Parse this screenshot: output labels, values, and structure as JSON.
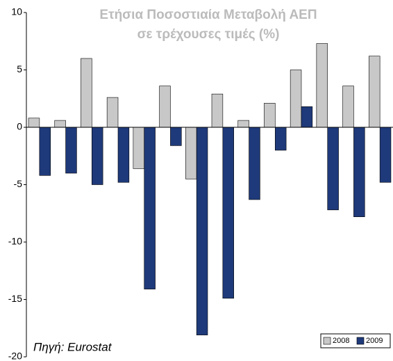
{
  "chart_data": {
    "type": "bar",
    "title": "Ετήσια Ποσοστιαία Μεταβολή ΑΕΠ",
    "subtitle": "σε τρέχουσες τιμές (%)",
    "source": "Πηγή: Eurostat",
    "categories": [
      null,
      null,
      null,
      null,
      null,
      null,
      null,
      null,
      null,
      null,
      null,
      null,
      null,
      null
    ],
    "series": [
      {
        "name": "2008",
        "color": "#c8c8c8",
        "values": [
          0.8,
          0.6,
          6.0,
          2.6,
          -3.6,
          3.6,
          -4.5,
          2.9,
          0.6,
          2.1,
          5.0,
          7.3,
          3.6,
          6.2
        ]
      },
      {
        "name": "2009",
        "color": "#1f3a7a",
        "values": [
          -4.2,
          -4.0,
          -5.0,
          -4.8,
          -14.1,
          -1.6,
          -18.1,
          -14.9,
          -6.3,
          -2.0,
          1.8,
          -7.2,
          -7.8,
          -4.8
        ]
      }
    ],
    "ylim": [
      -20,
      10
    ],
    "yticks": [
      -20,
      -15,
      -10,
      -5,
      0,
      5,
      10
    ],
    "grid": false,
    "legend": "bottom-right"
  }
}
